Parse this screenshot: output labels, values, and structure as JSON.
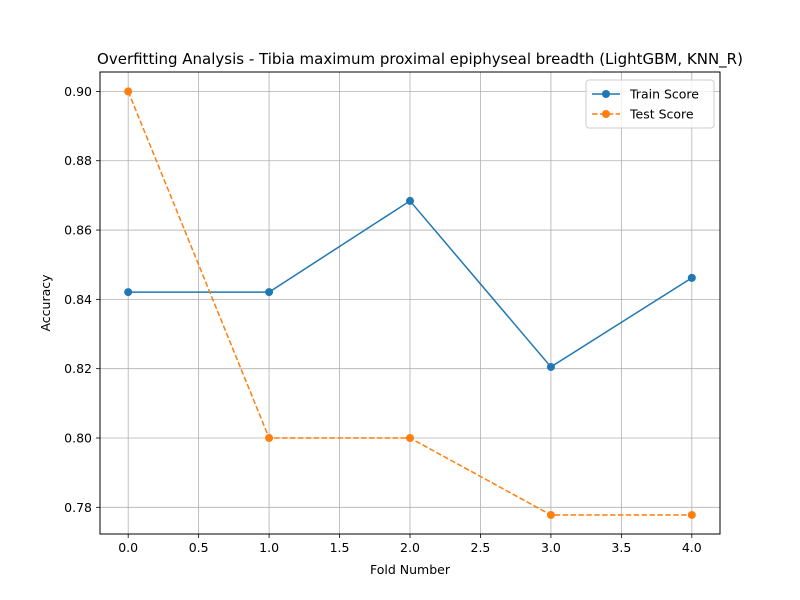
{
  "chart_data": {
    "type": "line",
    "title": "Overfitting Analysis - Tibia maximum proximal epiphyseal breadth (LightGBM, KNN_R)",
    "xlabel": "Fold Number",
    "ylabel": "Accuracy",
    "x": [
      0,
      1,
      2,
      3,
      4
    ],
    "xlim": [
      -0.2,
      4.2
    ],
    "ylim": [
      0.7723,
      0.9056
    ],
    "xticks": [
      0.0,
      0.5,
      1.0,
      1.5,
      2.0,
      2.5,
      3.0,
      3.5,
      4.0
    ],
    "xtick_labels": [
      "0.0",
      "0.5",
      "1.0",
      "1.5",
      "2.0",
      "2.5",
      "3.0",
      "3.5",
      "4.0"
    ],
    "yticks": [
      0.78,
      0.8,
      0.82,
      0.84,
      0.86,
      0.88,
      0.9
    ],
    "ytick_labels": [
      "0.78",
      "0.80",
      "0.82",
      "0.84",
      "0.86",
      "0.88",
      "0.90"
    ],
    "grid": true,
    "legend_position": "top-right",
    "series": [
      {
        "name": "Train Score",
        "values": [
          0.8421,
          0.8421,
          0.8684,
          0.8205,
          0.8462
        ],
        "color": "#1f77b4",
        "linestyle": "solid",
        "marker": "circle"
      },
      {
        "name": "Test Score",
        "values": [
          0.9,
          0.8,
          0.8,
          0.7778,
          0.7778
        ],
        "color": "#ff7f0e",
        "linestyle": "dashed",
        "marker": "circle"
      }
    ]
  }
}
